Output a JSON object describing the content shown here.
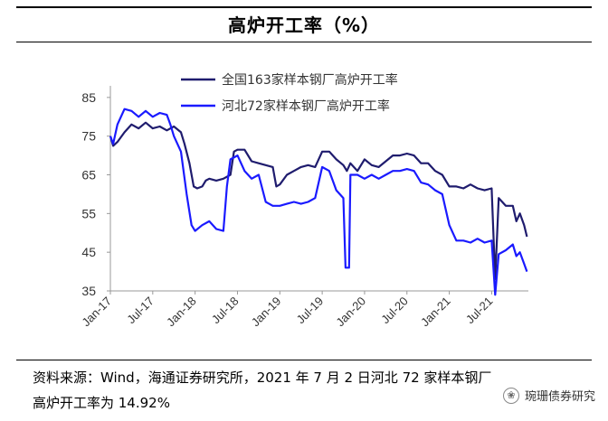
{
  "header": {
    "title": "高炉开工率（%）"
  },
  "chart_data": {
    "type": "line",
    "ylim": [
      35,
      88
    ],
    "y_ticks": [
      35,
      45,
      55,
      65,
      75,
      85
    ],
    "x_tick_labels": [
      "Jan-17",
      "Jul-17",
      "Jan-18",
      "Jul-18",
      "Jan-19",
      "Jul-19",
      "Jan-20",
      "Jul-20",
      "Jan-21",
      "Jul-21"
    ],
    "x_ticks_month_index": [
      0,
      6,
      12,
      18,
      24,
      30,
      36,
      42,
      48,
      54
    ],
    "x_range_months": [
      0,
      59.2
    ],
    "legend_position": "top-left",
    "series": [
      {
        "name": "全国163家样本钢厂高炉开工率",
        "color": "#1f1c6e",
        "points": [
          [
            0,
            75
          ],
          [
            0.4,
            72.5
          ],
          [
            1,
            73.5
          ],
          [
            2,
            76
          ],
          [
            3,
            78
          ],
          [
            4,
            77
          ],
          [
            5,
            78.5
          ],
          [
            6,
            77
          ],
          [
            7,
            77.5
          ],
          [
            8,
            76.5
          ],
          [
            9,
            77.5
          ],
          [
            10,
            76
          ],
          [
            10.5,
            73
          ],
          [
            11.2,
            68
          ],
          [
            11.8,
            62
          ],
          [
            12.3,
            61.5
          ],
          [
            13,
            62
          ],
          [
            13.5,
            63.5
          ],
          [
            14,
            64
          ],
          [
            15,
            63.5
          ],
          [
            16,
            64
          ],
          [
            17,
            65
          ],
          [
            17.5,
            71
          ],
          [
            18,
            71.5
          ],
          [
            19,
            71.5
          ],
          [
            20,
            68.5
          ],
          [
            21,
            68
          ],
          [
            22,
            67.5
          ],
          [
            23,
            67
          ],
          [
            23.5,
            62
          ],
          [
            24,
            62.5
          ],
          [
            25,
            65
          ],
          [
            26,
            66
          ],
          [
            27,
            67
          ],
          [
            28,
            67.5
          ],
          [
            29,
            67
          ],
          [
            30,
            71
          ],
          [
            31,
            71
          ],
          [
            32,
            69
          ],
          [
            33,
            67.5
          ],
          [
            33.5,
            66
          ],
          [
            34,
            68
          ],
          [
            35,
            66
          ],
          [
            36,
            69
          ],
          [
            37,
            67.5
          ],
          [
            38,
            67
          ],
          [
            39,
            68.5
          ],
          [
            40,
            70
          ],
          [
            41,
            70
          ],
          [
            42,
            70.5
          ],
          [
            43,
            70
          ],
          [
            44,
            68
          ],
          [
            45,
            68
          ],
          [
            46,
            66
          ],
          [
            47,
            65
          ],
          [
            48,
            62
          ],
          [
            49,
            62
          ],
          [
            50,
            61.5
          ],
          [
            51,
            62.5
          ],
          [
            52,
            61.5
          ],
          [
            53,
            61
          ],
          [
            54,
            61.5
          ],
          [
            54.5,
            38
          ],
          [
            55,
            59
          ],
          [
            56,
            57
          ],
          [
            57,
            57
          ],
          [
            57.5,
            53
          ],
          [
            58,
            55
          ],
          [
            58.6,
            52
          ],
          [
            59,
            49
          ]
        ]
      },
      {
        "name": "河北72家样本钢厂高炉开工率",
        "color": "#1a1aff",
        "points": [
          [
            0,
            75
          ],
          [
            0.4,
            73
          ],
          [
            1,
            78
          ],
          [
            2,
            82
          ],
          [
            3,
            81.5
          ],
          [
            4,
            80
          ],
          [
            5,
            81.5
          ],
          [
            6,
            80
          ],
          [
            7,
            81
          ],
          [
            8,
            80.5
          ],
          [
            8.5,
            78
          ],
          [
            9,
            75
          ],
          [
            10,
            71
          ],
          [
            10.8,
            60
          ],
          [
            11.5,
            52
          ],
          [
            12,
            50.5
          ],
          [
            13,
            52
          ],
          [
            14,
            53
          ],
          [
            15,
            51
          ],
          [
            16,
            50.5
          ],
          [
            16.5,
            62
          ],
          [
            17,
            69
          ],
          [
            18,
            70
          ],
          [
            19,
            66
          ],
          [
            20,
            64
          ],
          [
            21,
            65
          ],
          [
            22,
            58
          ],
          [
            23,
            57
          ],
          [
            24,
            57
          ],
          [
            25,
            57.5
          ],
          [
            26,
            58
          ],
          [
            27,
            57.5
          ],
          [
            28,
            58
          ],
          [
            29,
            59
          ],
          [
            30,
            67
          ],
          [
            31,
            66
          ],
          [
            32,
            61
          ],
          [
            33,
            59
          ],
          [
            33.3,
            41
          ],
          [
            33.8,
            41
          ],
          [
            34,
            65
          ],
          [
            35,
            65
          ],
          [
            36,
            64
          ],
          [
            37,
            65
          ],
          [
            38,
            64
          ],
          [
            39,
            65
          ],
          [
            40,
            66
          ],
          [
            41,
            66
          ],
          [
            42,
            66.5
          ],
          [
            43,
            66
          ],
          [
            44,
            63
          ],
          [
            45,
            62.5
          ],
          [
            46,
            61
          ],
          [
            47,
            60
          ],
          [
            48,
            52
          ],
          [
            49,
            48
          ],
          [
            50,
            48
          ],
          [
            51,
            47.5
          ],
          [
            52,
            48.5
          ],
          [
            53,
            47.5
          ],
          [
            54,
            48
          ],
          [
            54.5,
            34
          ],
          [
            55,
            44.5
          ],
          [
            56,
            45.5
          ],
          [
            57,
            47
          ],
          [
            57.5,
            44
          ],
          [
            58,
            45
          ],
          [
            58.6,
            42
          ],
          [
            59,
            40
          ]
        ]
      }
    ]
  },
  "footer": {
    "source_line1": "资料来源：Wind，海通证券研究所，2021 年 7 月 2 日河北 72 家样本钢厂",
    "source_line2": "高炉开工率为 14.92%",
    "watermark": "琬珊债券研究"
  }
}
